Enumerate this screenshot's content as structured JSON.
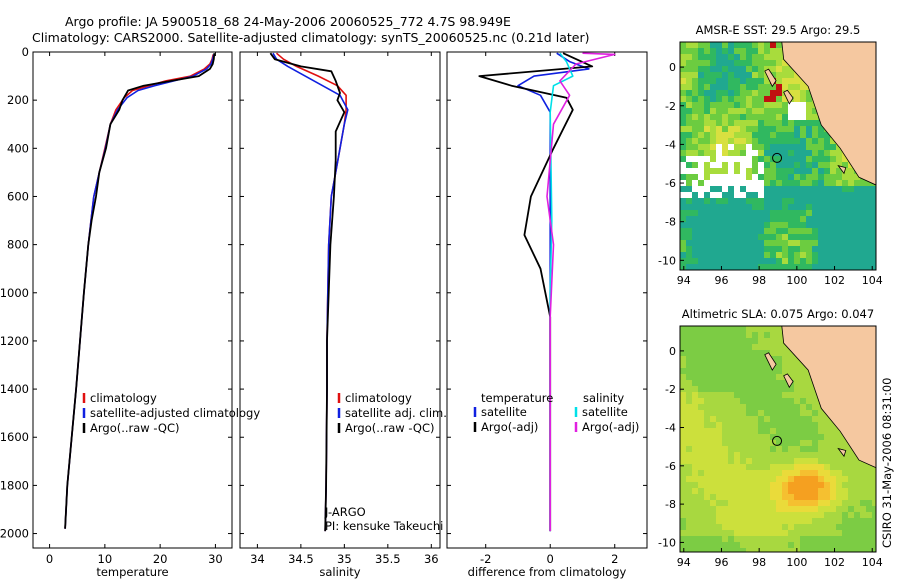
{
  "header": {
    "title_line1": "Argo profile: JA 5900518_68 24-May-2006 20060525_772 4.7S 98.949E",
    "title_line2": "Climatology: CARS2000. Satellite-adjusted climatology: synTS_20060525.nc (0.21d later)"
  },
  "footer": {
    "side_text": "CSIRO 31-May-2006 08:31:00"
  },
  "colors": {
    "climatology": "#e01010",
    "satellite": "#1020e0",
    "argo": "#000000",
    "cyan": "#00e0e8",
    "magenta": "#e020e0"
  },
  "chart_data": [
    {
      "id": "temperature",
      "type": "line",
      "xlabel": "temperature",
      "ylabel": "",
      "xlim": [
        -3,
        33
      ],
      "ylim": [
        2060,
        0
      ],
      "xticks": [
        "0",
        "10",
        "20",
        "30"
      ],
      "xtick_values": [
        0,
        10,
        20,
        30
      ],
      "yticks": [
        "0",
        "200",
        "400",
        "600",
        "800",
        "1000",
        "1200",
        "1400",
        "1600",
        "1800",
        "2000"
      ],
      "ytick_values": [
        0,
        200,
        400,
        600,
        800,
        1000,
        1200,
        1400,
        1600,
        1800,
        2000
      ],
      "legend": [
        "climatology",
        "satellite-adjusted climatology",
        "Argo(..raw -QC)"
      ],
      "series": [
        {
          "name": "climatology",
          "color": "#e01010",
          "x": [
            29.6,
            29.4,
            29.0,
            28.0,
            25.5,
            21.0,
            18.0,
            15.0,
            13.5,
            12.0,
            11.0,
            10.0,
            9.0,
            8.0,
            7.5,
            7.0,
            6.2,
            5.5,
            4.8,
            4.0,
            3.2,
            2.8
          ],
          "y": [
            10,
            30,
            50,
            70,
            100,
            120,
            140,
            160,
            190,
            240,
            300,
            400,
            500,
            600,
            700,
            800,
            1000,
            1200,
            1400,
            1600,
            1800,
            1980
          ]
        },
        {
          "name": "satellite-adjusted climatology",
          "color": "#1020e0",
          "x": [
            29.7,
            29.5,
            29.2,
            28.4,
            26.0,
            22.5,
            19.0,
            16.0,
            14.0,
            12.3,
            11.0,
            10.1,
            9.0,
            8.0,
            7.5,
            7.0,
            6.2,
            5.5,
            4.8,
            4.0,
            3.2,
            2.8
          ],
          "y": [
            10,
            30,
            50,
            70,
            100,
            120,
            140,
            160,
            190,
            240,
            300,
            400,
            500,
            600,
            700,
            800,
            1000,
            1200,
            1400,
            1600,
            1800,
            1980
          ]
        },
        {
          "name": "Argo(..raw -QC)",
          "color": "#000000",
          "x": [
            29.8,
            29.7,
            29.5,
            29.0,
            27.0,
            22.0,
            17.0,
            14.2,
            13.2,
            12.6,
            11.0,
            10.2,
            9.0,
            8.4,
            7.6,
            7.0,
            6.2,
            5.5,
            4.8,
            4.0,
            3.2,
            2.8
          ],
          "y": [
            5,
            30,
            50,
            70,
            100,
            120,
            140,
            160,
            200,
            240,
            300,
            400,
            500,
            600,
            700,
            800,
            1000,
            1200,
            1400,
            1600,
            1800,
            1980
          ]
        }
      ]
    },
    {
      "id": "salinity",
      "type": "line",
      "xlabel": "salinity",
      "ylabel": "",
      "xlim": [
        33.8,
        36.1
      ],
      "ylim": [
        2060,
        0
      ],
      "xticks": [
        "34",
        "34.5",
        "35",
        "35.5",
        "36"
      ],
      "xtick_values": [
        34,
        34.5,
        35,
        35.5,
        36
      ],
      "legend": [
        "climatology",
        "satellite adj. clim.",
        "Argo(..raw -QC)"
      ],
      "annotations": [
        "J-ARGO",
        "PI: kensuke Takeuchi"
      ],
      "series": [
        {
          "name": "climatology",
          "color": "#e01010",
          "x": [
            34.22,
            34.3,
            34.45,
            34.7,
            34.92,
            35.02,
            35.02,
            35.0,
            34.95,
            34.9,
            34.85,
            34.82,
            34.81,
            34.8,
            34.8,
            34.79,
            34.78
          ],
          "y": [
            5,
            30,
            60,
            100,
            140,
            180,
            240,
            300,
            400,
            500,
            600,
            800,
            1000,
            1200,
            1400,
            1800,
            1990
          ]
        },
        {
          "name": "satellite adj. clim.",
          "color": "#1020e0",
          "x": [
            34.18,
            34.22,
            34.35,
            34.55,
            34.75,
            34.95,
            35.04,
            35.0,
            34.95,
            34.9,
            34.85,
            34.82,
            34.81,
            34.8,
            34.8,
            34.79,
            34.78
          ],
          "y": [
            5,
            30,
            60,
            100,
            140,
            180,
            240,
            300,
            400,
            500,
            600,
            800,
            1000,
            1200,
            1400,
            1800,
            1990
          ]
        },
        {
          "name": "Argo(..raw -QC)",
          "color": "#000000",
          "x": [
            34.15,
            34.2,
            34.5,
            34.85,
            34.9,
            34.95,
            34.92,
            35.0,
            34.9,
            34.9,
            34.88,
            34.84,
            34.82,
            34.8,
            34.8,
            34.79,
            34.78
          ],
          "y": [
            5,
            30,
            60,
            80,
            120,
            170,
            200,
            250,
            330,
            450,
            600,
            800,
            1000,
            1200,
            1400,
            1800,
            1990
          ]
        }
      ]
    },
    {
      "id": "difference",
      "type": "line",
      "xlabel": "difference from climatology",
      "ylabel": "",
      "xlim": [
        -3.2,
        3.0
      ],
      "ylim": [
        2060,
        0
      ],
      "xticks": [
        "-2",
        "0",
        "2"
      ],
      "xtick_values": [
        -2,
        0,
        2
      ],
      "legend_left_title": "temperature",
      "legend_right_title": "salinity",
      "legend": [
        "satellite",
        "Argo(-adj)",
        "satellite",
        "Argo(-adj)"
      ],
      "series": [
        {
          "name": "temperature satellite",
          "color": "#1020e0",
          "x": [
            0.2,
            0.6,
            1.2,
            -0.5,
            -1.0,
            -0.3,
            0.0,
            0.0,
            0.0,
            0.0
          ],
          "y": [
            5,
            40,
            70,
            100,
            140,
            180,
            250,
            400,
            1000,
            1990
          ]
        },
        {
          "name": "temperature Argo(-adj)",
          "color": "#000000",
          "x": [
            0.4,
            1.3,
            -2.2,
            -1.2,
            0.5,
            0.7,
            0.1,
            -0.6,
            -0.8,
            -0.3,
            0.0,
            0.0
          ],
          "y": [
            5,
            60,
            100,
            140,
            190,
            240,
            400,
            600,
            760,
            900,
            1100,
            1990
          ]
        },
        {
          "name": "salinity satellite",
          "color": "#00e0e8",
          "x": [
            0.3,
            0.5,
            0.7,
            0.1,
            0.0,
            0.05,
            0.0,
            0.0
          ],
          "y": [
            5,
            40,
            100,
            140,
            250,
            700,
            1000,
            1990
          ]
        },
        {
          "name": "salinity Argo(-adj)",
          "color": "#e020e0",
          "x": [
            1.0,
            2.0,
            0.8,
            0.3,
            0.6,
            0.1,
            -0.1,
            0.1,
            0.0,
            0.0
          ],
          "y": [
            5,
            10,
            50,
            120,
            180,
            300,
            600,
            800,
            1100,
            1990
          ]
        }
      ]
    },
    {
      "id": "sst_map",
      "type": "heatmap",
      "title": "AMSR-E SST: 29.5 Argo: 29.5",
      "xlim": [
        93.8,
        104.2
      ],
      "ylim": [
        -10.5,
        1.3
      ],
      "xticks": [
        "94",
        "96",
        "98",
        "100",
        "102",
        "104"
      ],
      "xtick_values": [
        94,
        96,
        98,
        100,
        102,
        104
      ],
      "yticks": [
        "0",
        "-2",
        "-4",
        "-6",
        "-8",
        "-10"
      ],
      "ytick_values": [
        0,
        -2,
        -4,
        -6,
        -8,
        -10
      ],
      "marker": {
        "lon": 98.949,
        "lat": -4.7
      }
    },
    {
      "id": "sla_map",
      "type": "heatmap",
      "title": "Altimetric SLA: 0.075 Argo: 0.047",
      "xlim": [
        93.8,
        104.2
      ],
      "ylim": [
        -10.5,
        1.3
      ],
      "xticks": [
        "94",
        "96",
        "98",
        "100",
        "102",
        "104"
      ],
      "xtick_values": [
        94,
        96,
        98,
        100,
        102,
        104
      ],
      "yticks": [
        "0",
        "-2",
        "-4",
        "-6",
        "-8",
        "-10"
      ],
      "ytick_values": [
        0,
        -2,
        -4,
        -6,
        -8,
        -10
      ],
      "marker": {
        "lon": 98.949,
        "lat": -4.7
      }
    }
  ]
}
